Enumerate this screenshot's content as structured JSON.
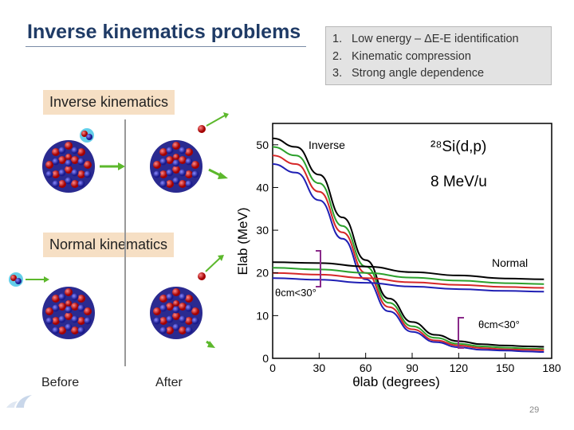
{
  "slide": {
    "title": "Inverse kinematics problems",
    "page_number": "29"
  },
  "problems": [
    {
      "num": "1.",
      "text": "Low energy – ΔE-E identification"
    },
    {
      "num": "2.",
      "text": "Kinematic compression"
    },
    {
      "num": "3.",
      "text": "Strong angle dependence"
    }
  ],
  "left_panel": {
    "inverse_label": "Inverse kinematics",
    "normal_label": "Normal kinematics",
    "before_label": "Before",
    "after_label": "After"
  },
  "chart_data": {
    "type": "line",
    "reaction_label": "²⁸Si(d,p)",
    "energy_label": "8 MeV/u",
    "xlabel": "θlab (degrees)",
    "ylabel": "Elab (MeV)",
    "xlim": [
      0,
      180
    ],
    "ylim": [
      0,
      55
    ],
    "xticks": [
      0,
      30,
      60,
      90,
      120,
      150,
      180
    ],
    "yticks": [
      0,
      10,
      20,
      30,
      40,
      50
    ],
    "grid": false,
    "annotations": {
      "inverse": "Inverse",
      "normal": "Normal",
      "theta_cut_left": "θcm<30°",
      "theta_cut_right": "θcm<30°"
    },
    "colors": [
      "#000000",
      "#2ca02c",
      "#d62728",
      "#1f1fb4"
    ],
    "series": [
      {
        "group": "inverse",
        "color": "#000000",
        "x": [
          0,
          15,
          30,
          45,
          60,
          75,
          90,
          105,
          120,
          135,
          150,
          165,
          175
        ],
        "y": [
          51.5,
          49.5,
          43,
          33,
          23,
          14,
          8.5,
          5.5,
          4,
          3.3,
          3,
          2.8,
          2.7
        ]
      },
      {
        "group": "inverse",
        "color": "#2ca02c",
        "x": [
          0,
          15,
          30,
          45,
          60,
          75,
          90,
          105,
          120,
          135,
          150,
          165,
          175
        ],
        "y": [
          49.5,
          47.5,
          41,
          31,
          21.5,
          13,
          7.5,
          4.8,
          3.4,
          2.8,
          2.5,
          2.3,
          2.2
        ]
      },
      {
        "group": "inverse",
        "color": "#d62728",
        "x": [
          0,
          15,
          30,
          45,
          60,
          75,
          90,
          105,
          120,
          135,
          150,
          165,
          175
        ],
        "y": [
          47.5,
          45.5,
          39,
          29.5,
          20,
          12,
          6.8,
          4.2,
          3,
          2.4,
          2.1,
          2,
          1.9
        ]
      },
      {
        "group": "inverse",
        "color": "#1f1fb4",
        "x": [
          0,
          15,
          30,
          45,
          60,
          75,
          90,
          105,
          120,
          135,
          150,
          165,
          175
        ],
        "y": [
          45.5,
          43.5,
          37,
          28,
          18.5,
          11,
          6.2,
          3.8,
          2.6,
          2,
          1.8,
          1.6,
          1.5
        ]
      },
      {
        "group": "normal",
        "color": "#000000",
        "x": [
          0,
          30,
          60,
          90,
          120,
          150,
          175
        ],
        "y": [
          22.5,
          22.3,
          21.5,
          20.2,
          19.4,
          18.7,
          18.5
        ]
      },
      {
        "group": "normal",
        "color": "#2ca02c",
        "x": [
          0,
          30,
          60,
          90,
          120,
          150,
          175
        ],
        "y": [
          21.2,
          20.8,
          20,
          18.9,
          18.2,
          17.6,
          17.4
        ]
      },
      {
        "group": "normal",
        "color": "#d62728",
        "x": [
          0,
          30,
          60,
          90,
          120,
          150,
          175
        ],
        "y": [
          20,
          19.6,
          18.8,
          17.8,
          17.2,
          16.7,
          16.5
        ]
      },
      {
        "group": "normal",
        "color": "#1f1fb4",
        "x": [
          0,
          30,
          60,
          90,
          120,
          150,
          175
        ],
        "y": [
          18.8,
          18.4,
          17.7,
          16.8,
          16.2,
          15.8,
          15.6
        ]
      }
    ]
  }
}
